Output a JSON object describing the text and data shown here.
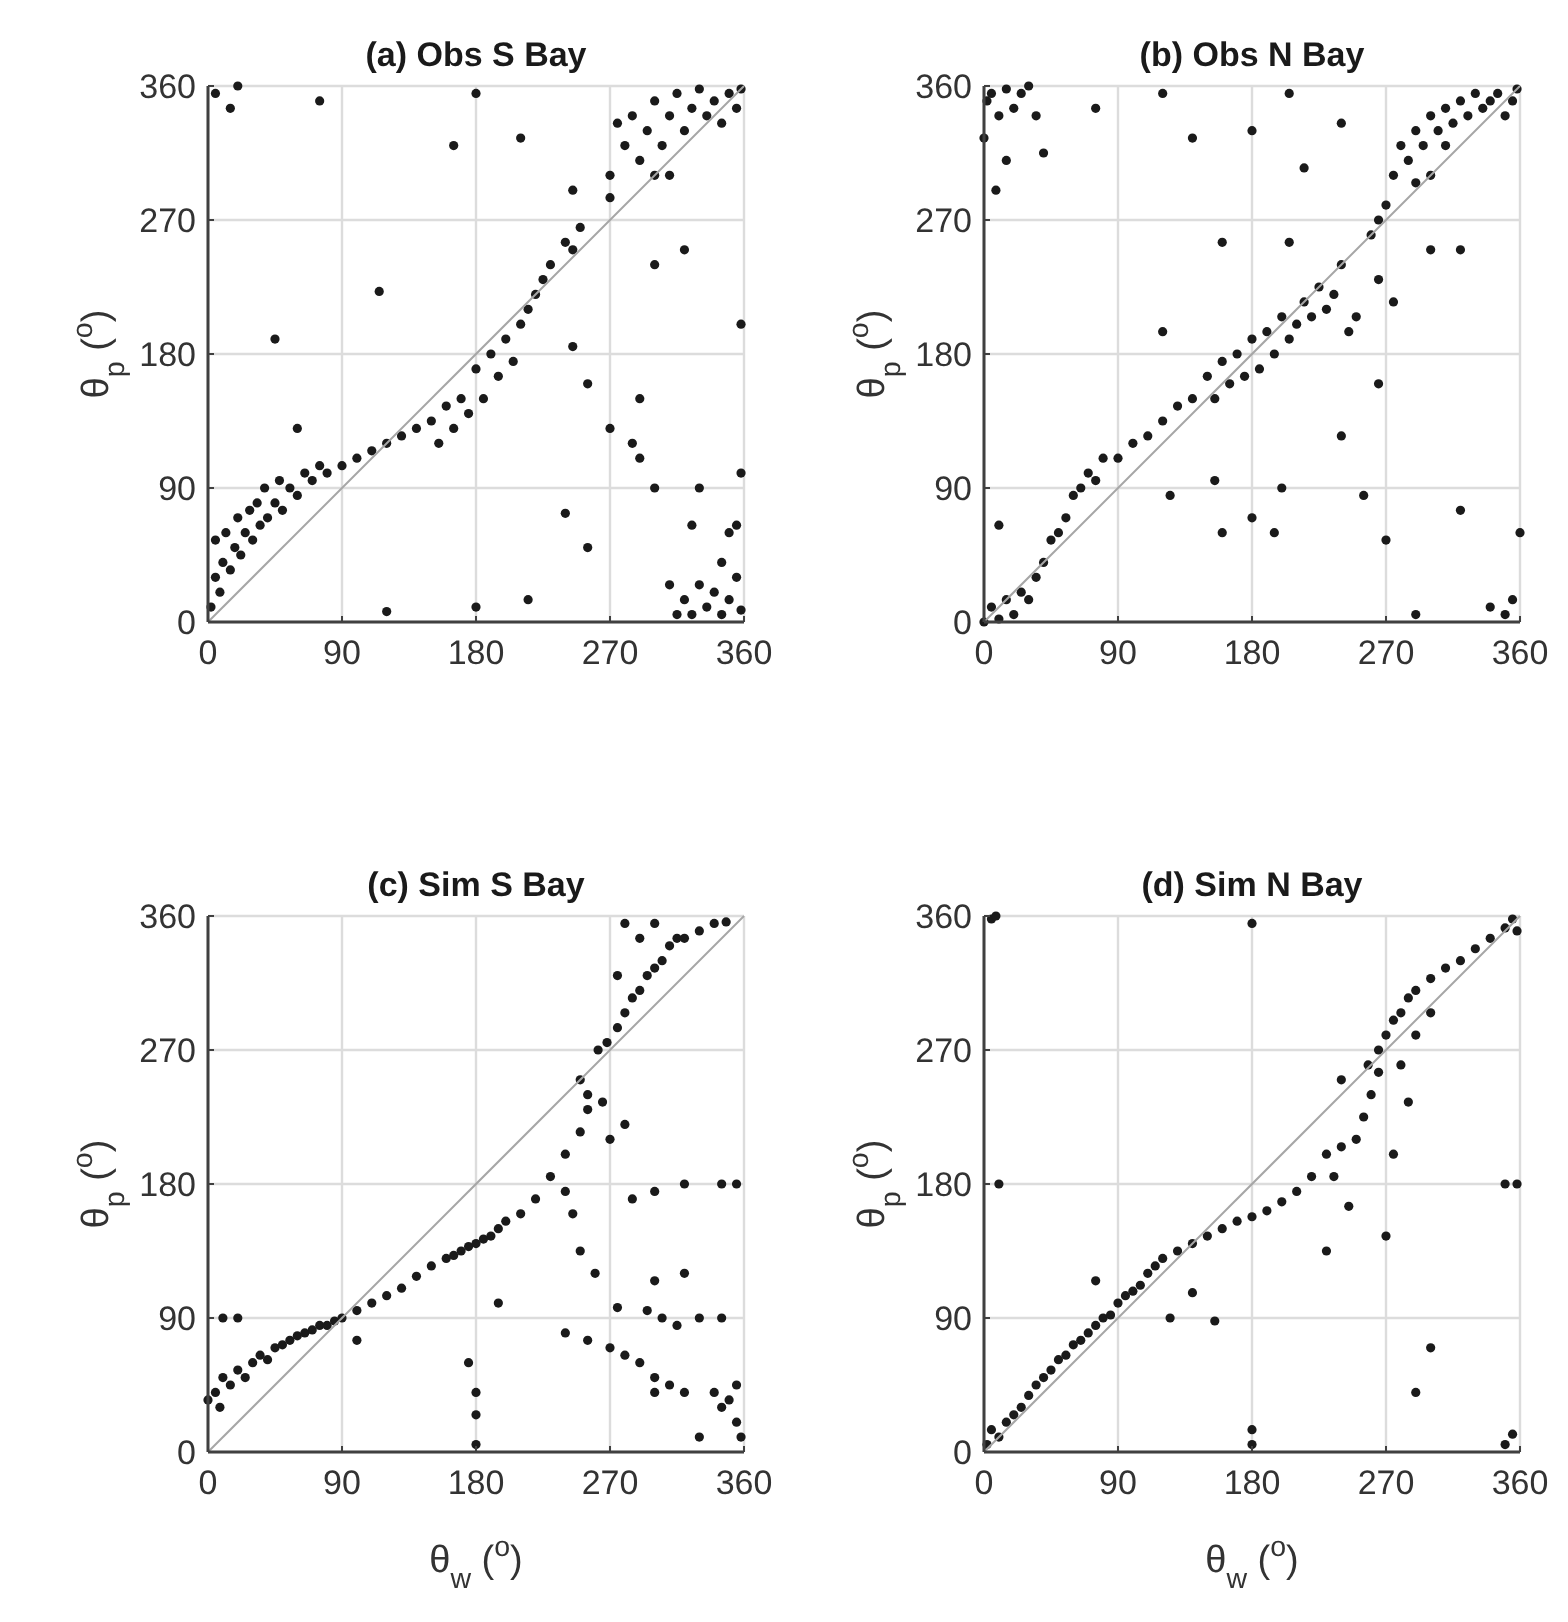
{
  "chart_data": [
    {
      "type": "scatter",
      "title": "(a) Obs S Bay",
      "ylabel": "θ$_{p}$ ($^{o}$)",
      "xlim": [
        0,
        360
      ],
      "ylim": [
        0,
        360
      ],
      "xticks": [
        0,
        90,
        180,
        270,
        360
      ],
      "yticks": [
        0,
        90,
        180,
        270,
        360
      ],
      "grid": true,
      "series": [
        {
          "marker": "circle",
          "color": "#1a1a1a",
          "x": [
            2,
            5,
            5,
            8,
            10,
            12,
            15,
            18,
            20,
            22,
            25,
            28,
            30,
            33,
            35,
            38,
            40,
            45,
            48,
            50,
            55,
            60,
            65,
            70,
            75,
            80,
            90,
            100,
            110,
            120,
            130,
            140,
            150,
            155,
            160,
            165,
            170,
            175,
            180,
            185,
            190,
            195,
            200,
            205,
            210,
            215,
            220,
            225,
            230,
            240,
            245,
            250,
            270,
            280,
            285,
            290,
            295,
            300,
            305,
            310,
            315,
            320,
            325,
            330,
            335,
            340,
            345,
            350,
            355,
            358,
            300,
            310,
            275,
            315,
            320,
            325,
            330,
            335,
            340,
            345,
            350,
            355,
            358,
            310,
            345,
            350,
            355,
            325,
            300,
            290,
            330,
            5,
            15,
            20,
            75,
            45,
            115,
            180,
            165,
            210,
            240,
            255,
            270,
            285,
            245,
            255,
            358,
            358,
            120,
            180,
            215,
            290,
            300,
            320,
            270,
            245,
            60
          ],
          "values": [
            10,
            30,
            55,
            20,
            40,
            60,
            35,
            50,
            70,
            45,
            60,
            75,
            55,
            80,
            65,
            90,
            70,
            80,
            95,
            75,
            90,
            85,
            100,
            95,
            105,
            100,
            105,
            110,
            115,
            120,
            125,
            130,
            135,
            120,
            145,
            130,
            150,
            140,
            170,
            150,
            180,
            165,
            190,
            175,
            200,
            210,
            220,
            230,
            240,
            255,
            250,
            265,
            300,
            320,
            340,
            310,
            330,
            350,
            320,
            340,
            355,
            330,
            345,
            358,
            340,
            350,
            335,
            355,
            345,
            358,
            300,
            300,
            335,
            5,
            15,
            5,
            25,
            10,
            20,
            5,
            15,
            30,
            8,
            25,
            40,
            60,
            65,
            65,
            90,
            110,
            90,
            355,
            345,
            360,
            350,
            190,
            222,
            355,
            320,
            325,
            73,
            50,
            130,
            120,
            185,
            160,
            200,
            100,
            7,
            10,
            15,
            150,
            240,
            250,
            285,
            290,
            130
          ]
        },
        {
          "type": "line",
          "color": "#a6a6a6",
          "x": [
            0,
            360
          ],
          "values": [
            0,
            360
          ]
        }
      ]
    },
    {
      "type": "scatter",
      "title": "(b) Obs N Bay",
      "ylabel": "θ$_{p}$ ($^{o}$)",
      "xlim": [
        0,
        360
      ],
      "ylim": [
        0,
        360
      ],
      "xticks": [
        0,
        90,
        180,
        270,
        360
      ],
      "yticks": [
        0,
        90,
        180,
        270,
        360
      ],
      "grid": true,
      "series": [
        {
          "marker": "circle",
          "color": "#1a1a1a",
          "x": [
            0,
            5,
            10,
            15,
            20,
            25,
            30,
            35,
            40,
            45,
            50,
            55,
            60,
            65,
            70,
            75,
            80,
            90,
            100,
            110,
            120,
            130,
            140,
            150,
            155,
            160,
            165,
            170,
            175,
            180,
            185,
            190,
            195,
            200,
            205,
            210,
            215,
            220,
            225,
            230,
            235,
            240,
            250,
            245,
            260,
            265,
            270,
            275,
            280,
            285,
            290,
            295,
            300,
            305,
            310,
            315,
            320,
            325,
            330,
            335,
            340,
            345,
            350,
            355,
            358,
            300,
            290,
            310,
            2,
            5,
            10,
            15,
            20,
            25,
            30,
            0,
            15,
            40,
            8,
            35,
            10,
            75,
            120,
            140,
            180,
            205,
            215,
            240,
            160,
            205,
            265,
            275,
            300,
            320,
            200,
            240,
            255,
            180,
            195,
            160,
            270,
            320,
            360,
            340,
            350,
            355,
            290,
            125,
            155,
            265,
            120
          ],
          "values": [
            0,
            10,
            2,
            15,
            5,
            20,
            15,
            30,
            40,
            55,
            60,
            70,
            85,
            90,
            100,
            95,
            110,
            110,
            120,
            125,
            135,
            145,
            150,
            165,
            150,
            175,
            160,
            180,
            165,
            190,
            170,
            195,
            180,
            205,
            190,
            200,
            215,
            205,
            225,
            210,
            220,
            240,
            205,
            195,
            260,
            270,
            280,
            300,
            320,
            310,
            330,
            320,
            340,
            330,
            345,
            335,
            350,
            340,
            355,
            345,
            350,
            355,
            340,
            350,
            358,
            300,
            295,
            320,
            350,
            355,
            340,
            358,
            345,
            355,
            360,
            325,
            310,
            315,
            290,
            340,
            65,
            345,
            355,
            325,
            330,
            355,
            305,
            335,
            255,
            255,
            230,
            215,
            250,
            250,
            90,
            125,
            85,
            70,
            60,
            60,
            55,
            75,
            60,
            10,
            5,
            15,
            5,
            85,
            95,
            160,
            195
          ]
        },
        {
          "type": "line",
          "color": "#a6a6a6",
          "x": [
            0,
            360
          ],
          "values": [
            0,
            360
          ]
        }
      ]
    },
    {
      "type": "scatter",
      "title": "(c) Sim S Bay",
      "xlabel": "θ$_{w}$ ($^{o}$)",
      "ylabel": "θ$_{p}$ ($^{o}$)",
      "xlim": [
        0,
        360
      ],
      "ylim": [
        0,
        360
      ],
      "xticks": [
        0,
        90,
        180,
        270,
        360
      ],
      "yticks": [
        0,
        90,
        180,
        270,
        360
      ],
      "grid": true,
      "series": [
        {
          "marker": "circle",
          "color": "#1a1a1a",
          "x": [
            0,
            5,
            8,
            10,
            15,
            20,
            25,
            30,
            35,
            40,
            45,
            50,
            55,
            60,
            65,
            70,
            75,
            80,
            85,
            90,
            100,
            110,
            120,
            130,
            140,
            150,
            160,
            165,
            170,
            175,
            180,
            185,
            190,
            195,
            200,
            210,
            220,
            230,
            240,
            250,
            255,
            262,
            268,
            275,
            280,
            285,
            290,
            295,
            300,
            305,
            310,
            315,
            320,
            330,
            340,
            348,
            280,
            290,
            300,
            275,
            250,
            255,
            265,
            270,
            280,
            285,
            300,
            320,
            345,
            355,
            240,
            245,
            250,
            260,
            275,
            295,
            305,
            315,
            330,
            345,
            280,
            290,
            300,
            310,
            320,
            340,
            350,
            355,
            358,
            355,
            345,
            240,
            255,
            270,
            180,
            180,
            180,
            175,
            195,
            100,
            10,
            20,
            300,
            320,
            300,
            330
          ],
          "values": [
            35,
            40,
            30,
            50,
            45,
            55,
            50,
            60,
            65,
            62,
            70,
            72,
            75,
            78,
            80,
            82,
            85,
            85,
            88,
            90,
            95,
            100,
            105,
            110,
            118,
            125,
            130,
            132,
            135,
            138,
            140,
            143,
            145,
            150,
            155,
            160,
            170,
            185,
            200,
            215,
            230,
            270,
            275,
            285,
            295,
            305,
            310,
            320,
            325,
            330,
            340,
            345,
            345,
            350,
            355,
            356,
            355,
            345,
            355,
            320,
            250,
            240,
            235,
            210,
            220,
            170,
            175,
            180,
            180,
            180,
            175,
            160,
            135,
            120,
            97,
            95,
            90,
            85,
            90,
            90,
            65,
            60,
            50,
            45,
            40,
            40,
            35,
            20,
            10,
            45,
            30,
            80,
            75,
            70,
            40,
            25,
            5,
            60,
            100,
            75,
            90,
            90,
            115,
            120,
            40,
            10
          ]
        },
        {
          "type": "line",
          "color": "#a6a6a6",
          "x": [
            0,
            360
          ],
          "values": [
            0,
            360
          ]
        }
      ]
    },
    {
      "type": "scatter",
      "title": "(d) Sim N Bay",
      "xlabel": "θ$_{w}$ ($^{o}$)",
      "ylabel": "θ$_{p}$ ($^{o}$)",
      "xlim": [
        0,
        360
      ],
      "ylim": [
        0,
        360
      ],
      "xticks": [
        0,
        90,
        180,
        270,
        360
      ],
      "yticks": [
        0,
        90,
        180,
        270,
        360
      ],
      "grid": true,
      "series": [
        {
          "marker": "circle",
          "color": "#1a1a1a",
          "x": [
            2,
            5,
            10,
            15,
            20,
            25,
            30,
            35,
            40,
            45,
            50,
            55,
            60,
            65,
            70,
            75,
            80,
            85,
            90,
            95,
            100,
            105,
            110,
            115,
            120,
            130,
            140,
            150,
            160,
            170,
            180,
            190,
            200,
            210,
            220,
            230,
            235,
            240,
            250,
            255,
            260,
            265,
            258,
            265,
            270,
            275,
            280,
            285,
            290,
            300,
            310,
            320,
            330,
            340,
            350,
            355,
            358,
            300,
            290,
            280,
            285,
            75,
            5,
            8,
            10,
            180,
            180,
            180,
            125,
            155,
            140,
            230,
            245,
            270,
            290,
            300,
            350,
            355,
            350,
            358,
            275,
            240
          ],
          "values": [
            5,
            15,
            10,
            20,
            25,
            30,
            38,
            45,
            50,
            55,
            62,
            65,
            72,
            75,
            80,
            85,
            90,
            92,
            100,
            105,
            108,
            112,
            120,
            125,
            130,
            135,
            140,
            145,
            150,
            155,
            158,
            162,
            168,
            175,
            185,
            200,
            185,
            205,
            210,
            225,
            240,
            255,
            260,
            270,
            280,
            290,
            295,
            305,
            310,
            318,
            325,
            330,
            338,
            345,
            352,
            358,
            350,
            295,
            280,
            260,
            235,
            115,
            358,
            360,
            180,
            355,
            15,
            5,
            90,
            88,
            107,
            135,
            165,
            145,
            40,
            70,
            5,
            12,
            180,
            180,
            200,
            250
          ]
        },
        {
          "type": "line",
          "color": "#a6a6a6",
          "x": [
            0,
            360
          ],
          "values": [
            0,
            360
          ]
        }
      ]
    }
  ]
}
